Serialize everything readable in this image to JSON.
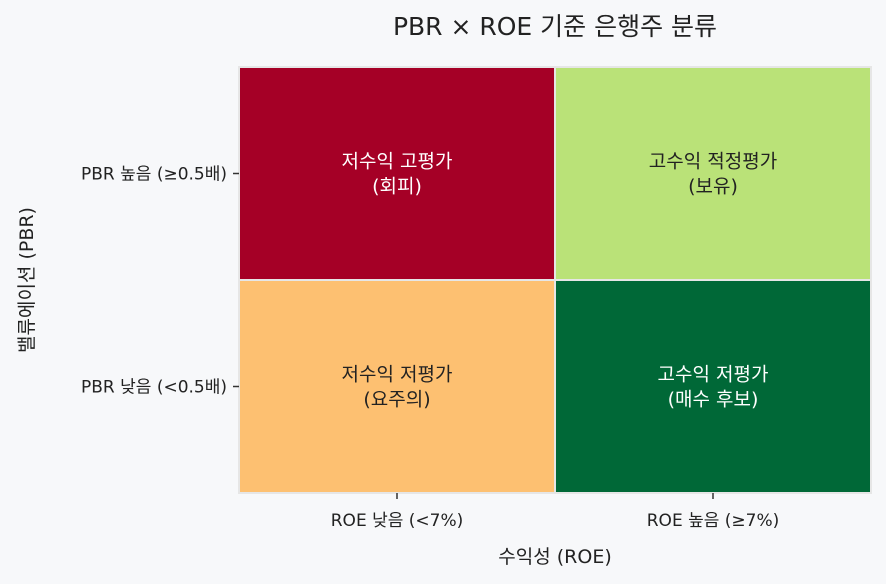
{
  "chart_data": {
    "type": "heatmap",
    "title": "PBR × ROE 기준 은행주 분류",
    "xlabel": "수익성 (ROE)",
    "ylabel": "밸류에이션 (PBR)",
    "x_categories": [
      "ROE 낮음 (<7%)",
      "ROE 높음 (≥7%)"
    ],
    "y_categories": [
      "PBR 높음 (≥0.5배)",
      "PBR 낮음 (<0.5배)"
    ],
    "cells": [
      [
        {
          "line1": "저수익 고평가",
          "line2": "(회피)",
          "color": "#a50026",
          "text_color": "#ffffff"
        },
        {
          "line1": "고수익 적정평가",
          "line2": "(보유)",
          "color": "#bae278",
          "text_color": "#222222"
        }
      ],
      [
        {
          "line1": "저수익 저평가",
          "line2": "(요주의)",
          "color": "#fdc071",
          "text_color": "#222222"
        },
        {
          "line1": "고수익 저평가",
          "line2": "(매수 후보)",
          "color": "#006837",
          "text_color": "#ffffff"
        }
      ]
    ],
    "grid": false,
    "legend": "none"
  }
}
